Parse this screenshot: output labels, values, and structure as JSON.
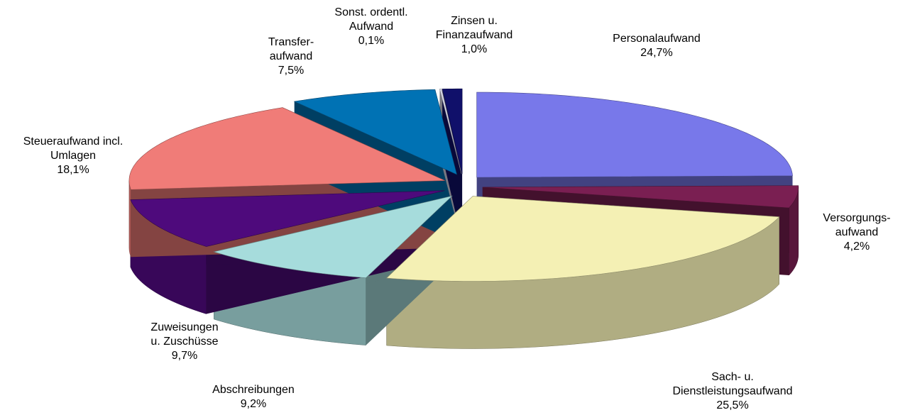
{
  "chart_data": {
    "type": "pie",
    "categories": [
      "Personalaufwand",
      "Versorgungs-\naufwand",
      "Sach- u.\nDienstleistungsaufwand",
      "Abschreibungen",
      "Zuweisungen\nu. Zuschüsse",
      "Steueraufwand incl.\nUmlagen",
      "Transfer-\naufwand",
      "Sonst. ordentl.\nAufwand",
      "Zinsen u.\nFinanzaufwand"
    ],
    "values": [
      24.7,
      4.2,
      25.5,
      9.2,
      9.7,
      18.1,
      7.5,
      0.1,
      1.0
    ],
    "value_labels": [
      "24,7%",
      "4,2%",
      "25,5%",
      "9,2%",
      "9,7%",
      "18,1%",
      "7,5%",
      "0,1%",
      "1,0%"
    ],
    "colors": [
      "#7878ea",
      "#7a1f52",
      "#f4f0b4",
      "#a6dcdc",
      "#4e0a7c",
      "#f07c78",
      "#0072b4",
      "#d8d8e8",
      "#10106a"
    ]
  }
}
